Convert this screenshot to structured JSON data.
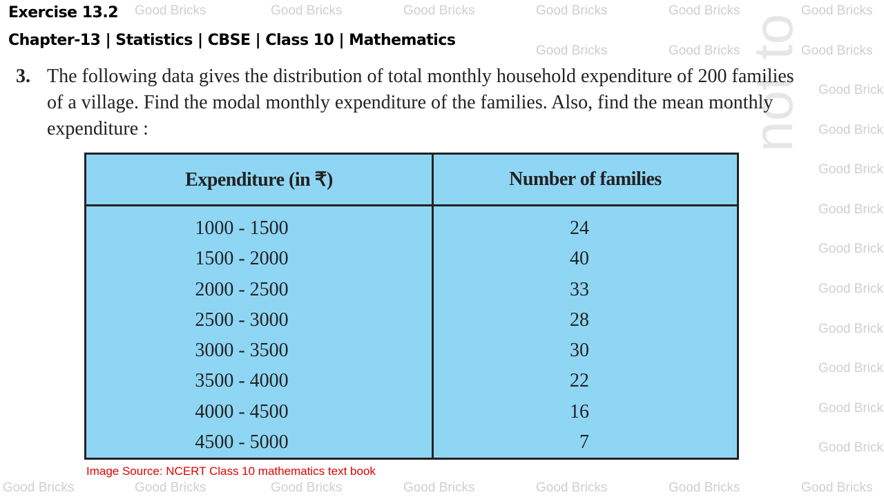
{
  "watermark": {
    "text": "Good Bricks",
    "diagonal_text": "not to be"
  },
  "header": {
    "exercise": "Exercise 13.2",
    "subtitle": "Chapter-13 | Statistics | CBSE | Class 10 | Mathematics"
  },
  "question": {
    "number": "3.",
    "text": "The following data gives the distribution of total monthly household expenditure of 200 families of a village. Find the modal monthly expenditure of the families. Also, find the mean monthly expenditure :"
  },
  "table": {
    "columns": [
      "Expenditure (in ₹)",
      "Number of families"
    ],
    "rows": [
      {
        "expenditure": "1000 - 1500",
        "families": "24"
      },
      {
        "expenditure": "1500 - 2000",
        "families": "40"
      },
      {
        "expenditure": "2000 - 2500",
        "families": "33"
      },
      {
        "expenditure": "2500 - 3000",
        "families": "28"
      },
      {
        "expenditure": "3000 - 3500",
        "families": "30"
      },
      {
        "expenditure": "3500 - 4000",
        "families": "22"
      },
      {
        "expenditure": "4000 - 4500",
        "families": "16"
      },
      {
        "expenditure": "4500 - 5000",
        "families": "7"
      }
    ],
    "background": "#8fd6f5"
  },
  "source": "Image Source: NCERT Class 10 mathematics text book"
}
